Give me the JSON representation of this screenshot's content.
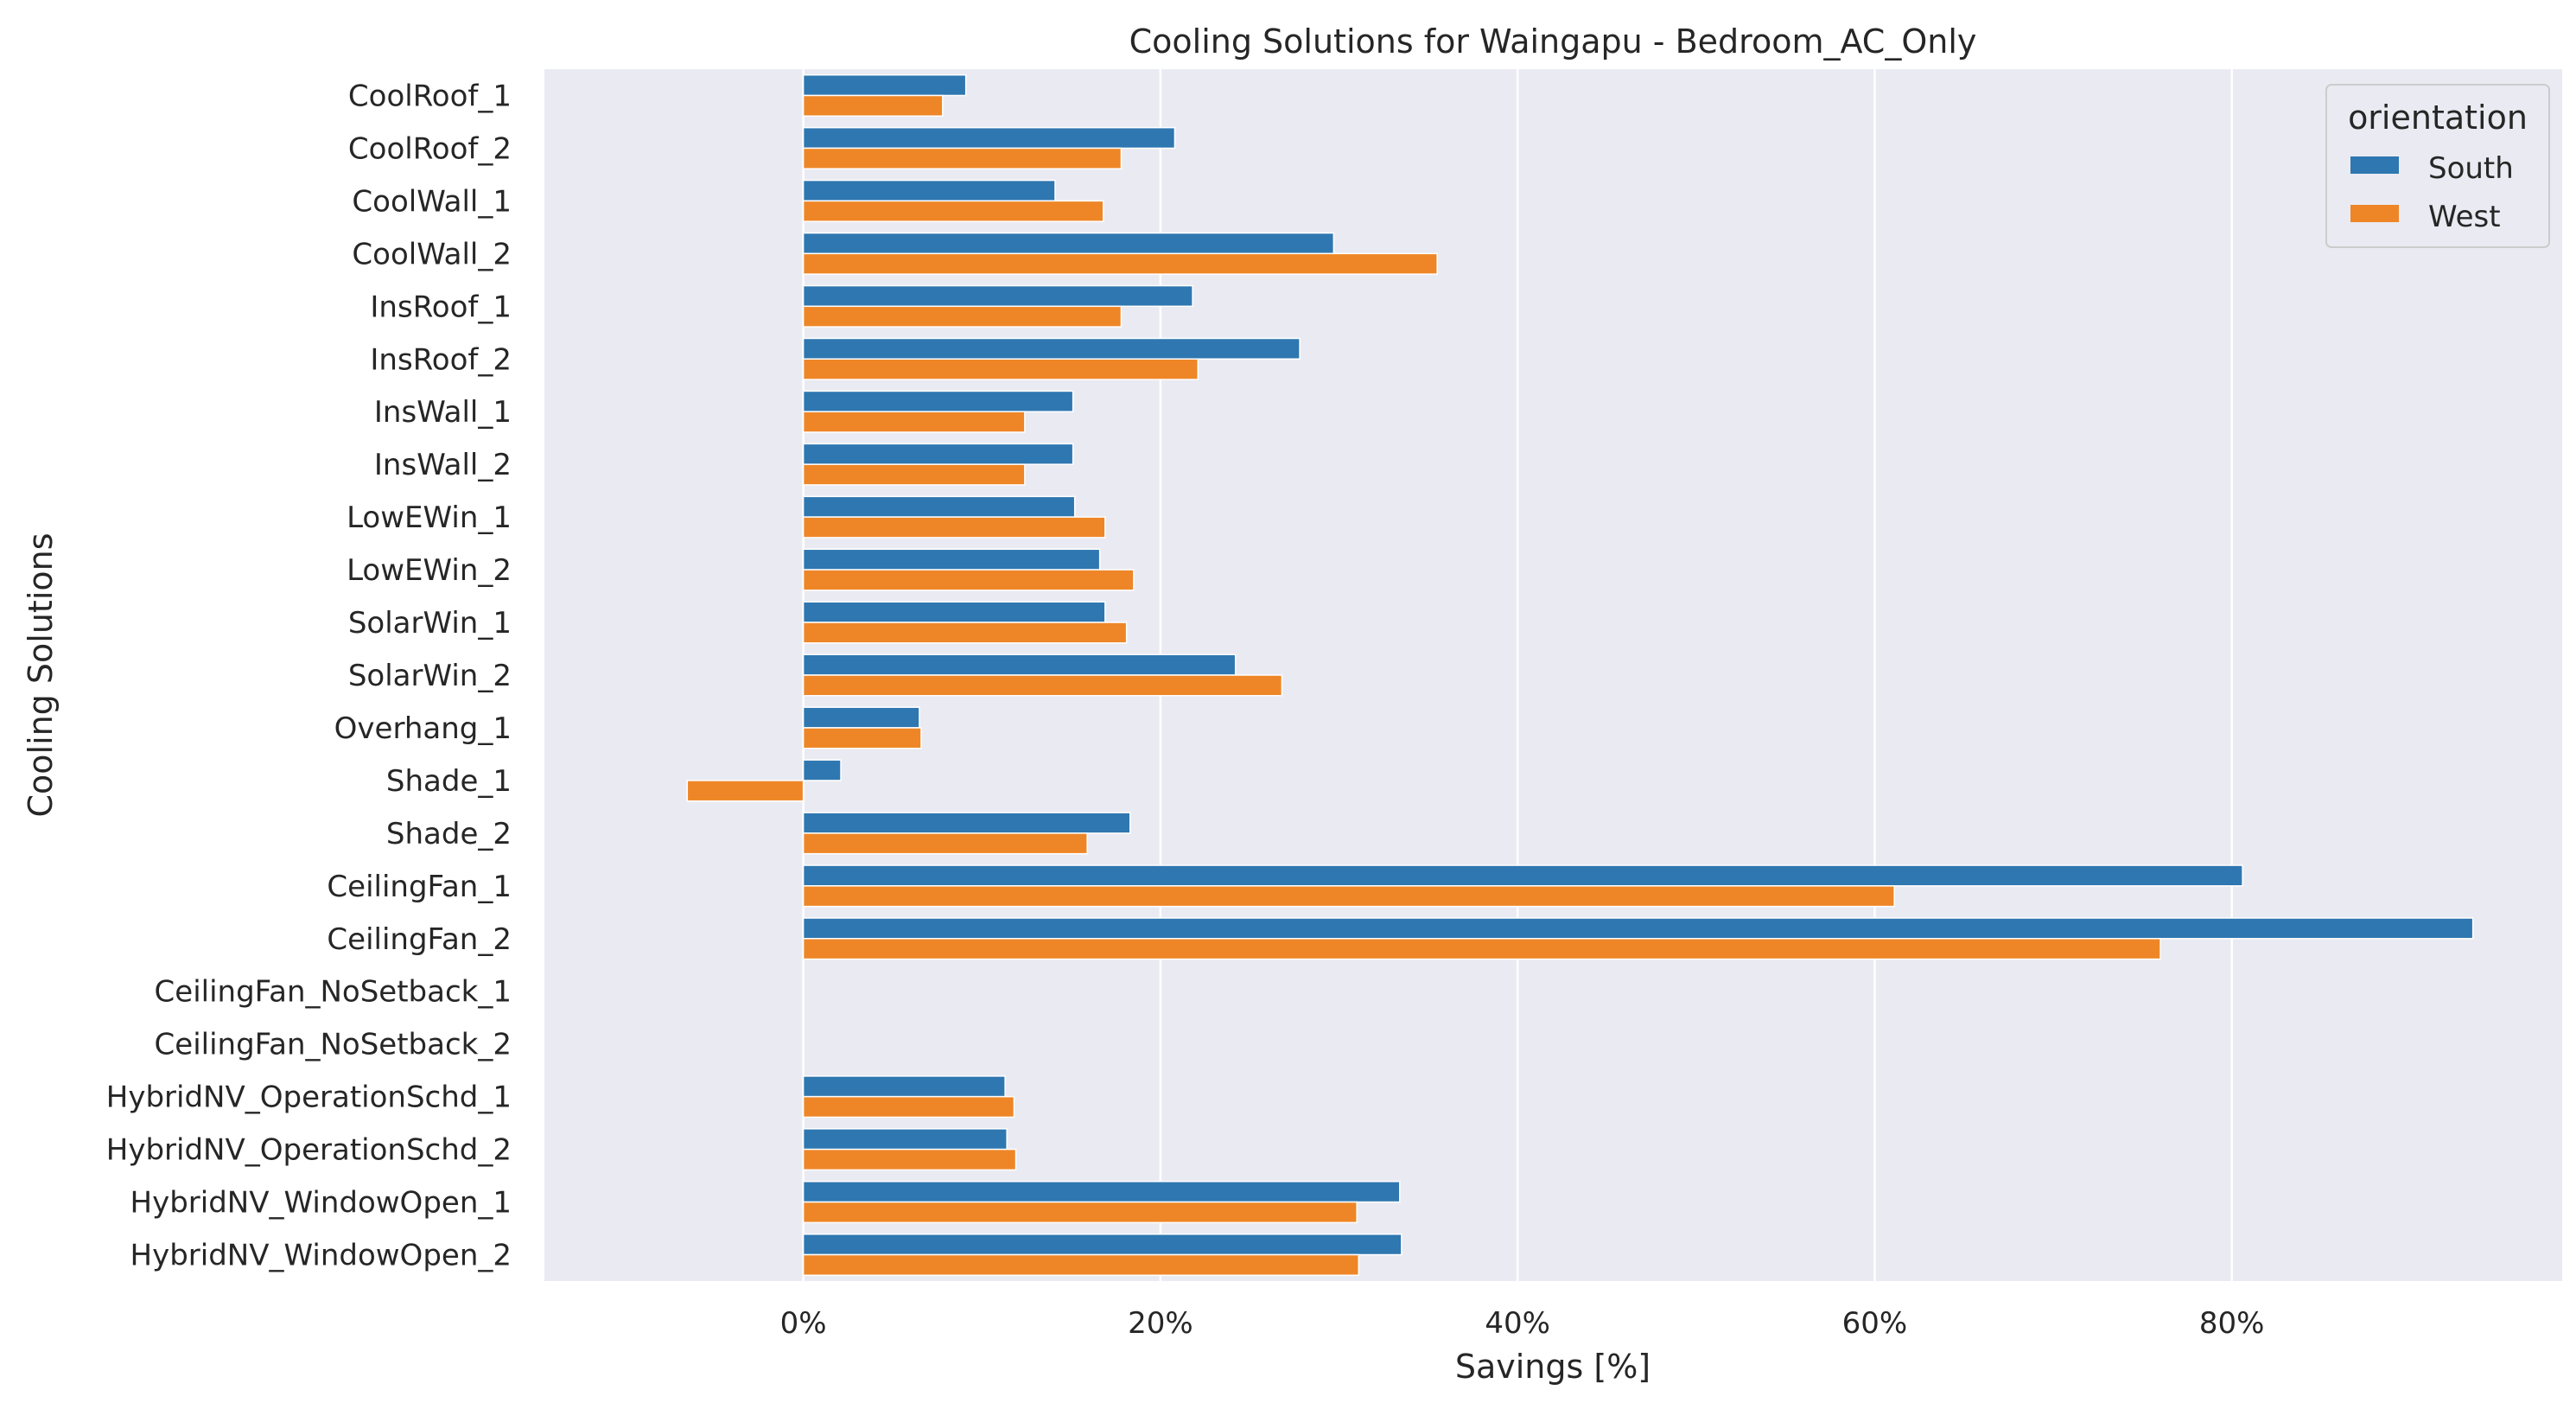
{
  "chart_data": {
    "type": "bar",
    "orientation": "horizontal",
    "title": "Cooling Solutions for Waingapu - Bedroom_AC_Only",
    "xlabel": "Savings [%]",
    "ylabel": "Cooling Solutions",
    "xlim": [
      -14.5,
      98.5
    ],
    "xticks": [
      0,
      20,
      40,
      60,
      80
    ],
    "xtick_labels": [
      "0%",
      "20%",
      "40%",
      "60%",
      "80%"
    ],
    "grid": "vertical",
    "categories": [
      "CoolRoof_1",
      "CoolRoof_2",
      "CoolWall_1",
      "CoolWall_2",
      "InsRoof_1",
      "InsRoof_2",
      "InsWall_1",
      "InsWall_2",
      "LowEWin_1",
      "LowEWin_2",
      "SolarWin_1",
      "SolarWin_2",
      "Overhang_1",
      "Shade_1",
      "Shade_2",
      "CeilingFan_1",
      "CeilingFan_2",
      "CeilingFan_NoSetback_1",
      "CeilingFan_NoSetback_2",
      "HybridNV_OperationSchd_1",
      "HybridNV_OperationSchd_2",
      "HybridNV_WindowOpen_1",
      "HybridNV_WindowOpen_2"
    ],
    "legend": {
      "title": "orientation",
      "placement": "top-right"
    },
    "series": [
      {
        "name": "South",
        "color": "#2f77b0",
        "values": [
          9.1,
          20.8,
          14.1,
          29.7,
          21.8,
          27.8,
          15.1,
          15.1,
          15.2,
          16.6,
          16.9,
          24.2,
          6.5,
          2.1,
          18.3,
          80.6,
          93.5,
          null,
          null,
          11.3,
          11.4,
          33.4,
          33.5
        ]
      },
      {
        "name": "West",
        "color": "#ee8627",
        "values": [
          7.8,
          17.8,
          16.8,
          35.5,
          17.8,
          22.1,
          12.4,
          12.4,
          16.9,
          18.5,
          18.1,
          26.8,
          6.6,
          -6.5,
          15.9,
          61.1,
          76.0,
          null,
          null,
          11.8,
          11.9,
          31.0,
          31.1
        ]
      }
    ]
  }
}
